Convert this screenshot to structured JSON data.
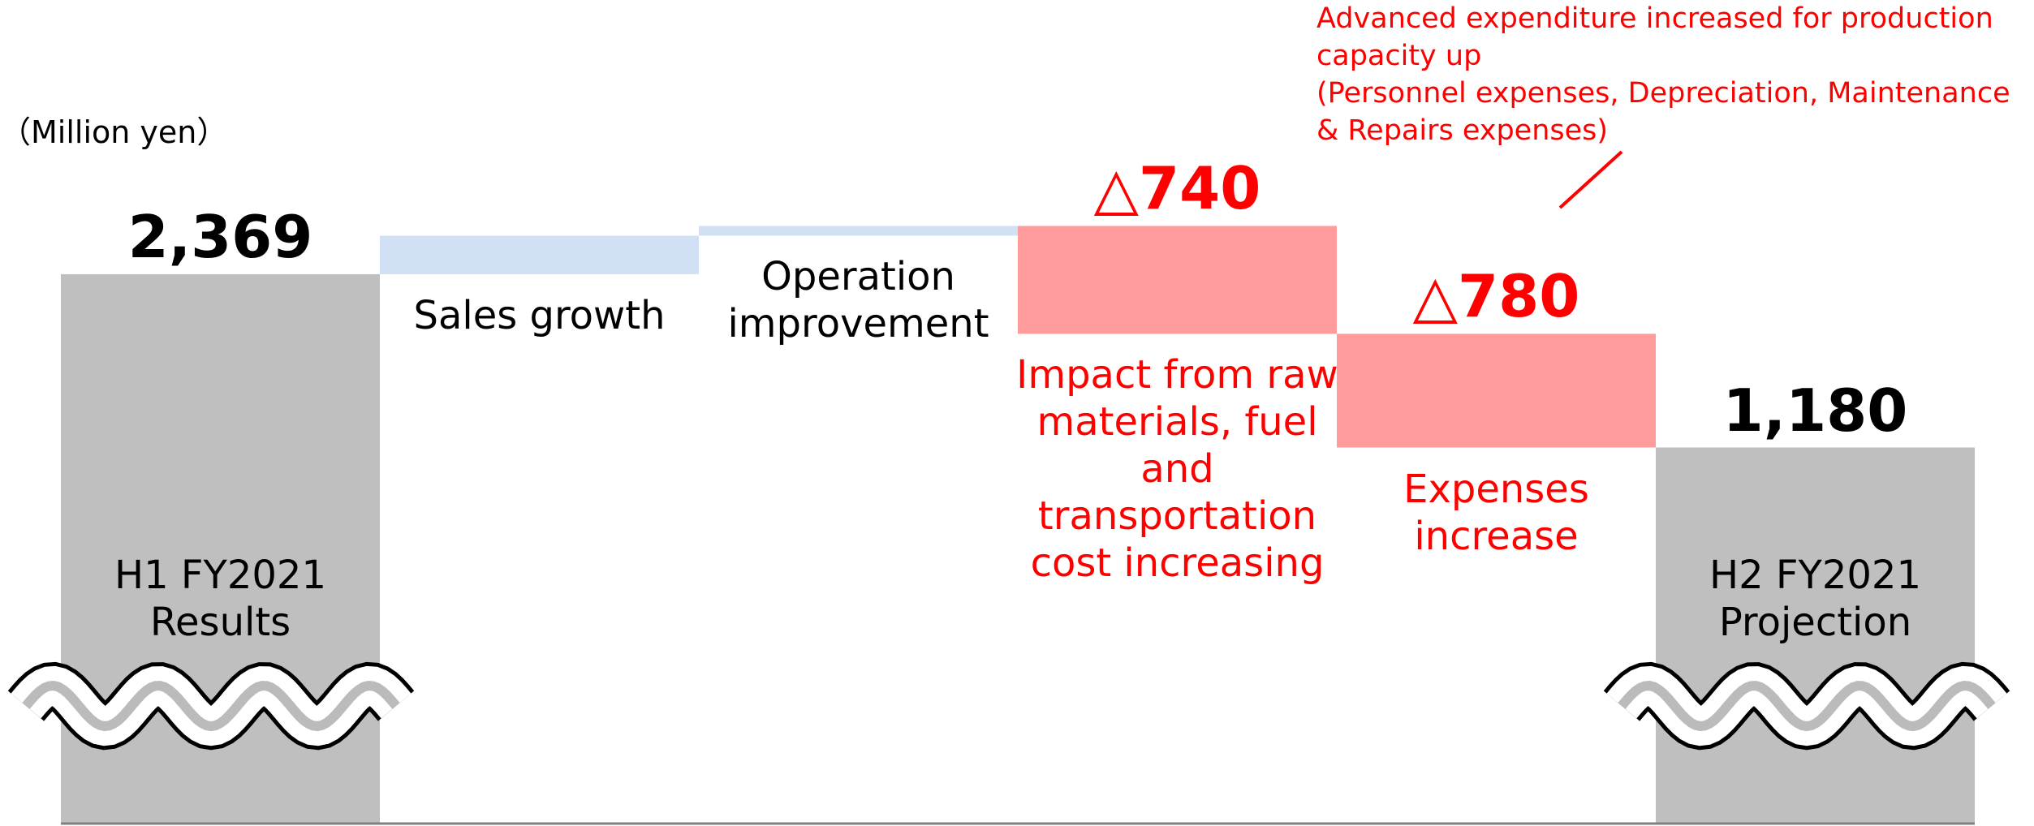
{
  "chart_data": {
    "type": "waterfall",
    "unit_label": "（Million yen）",
    "categories": [
      "H1 FY2021 Results",
      "Sales growth",
      "Operation improvement",
      "Impact from raw materials, fuel and transportation cost increasing",
      "Expenses increase",
      "H2 FY2021 Projection"
    ],
    "measure": [
      "absolute",
      "relative",
      "relative",
      "relative",
      "relative",
      "absolute"
    ],
    "values": [
      2369,
      264,
      67,
      -740,
      -780,
      1180
    ],
    "value_labels": [
      "2,369",
      null,
      null,
      "△740",
      "△780",
      "1,180"
    ],
    "colors": [
      "#bfbfbf",
      "#d1e0f4",
      "#d1e0f4",
      "#ff9b9b",
      "#ff9b9b",
      "#bfbfbf"
    ],
    "ylim": [
      -1400,
      4250
    ],
    "axis_break": true,
    "annotations": [
      "Advanced expenditure increased for production capacity up",
      "(Personnel expenses, Depreciation, Maintenance & Repairs expenses)"
    ]
  }
}
